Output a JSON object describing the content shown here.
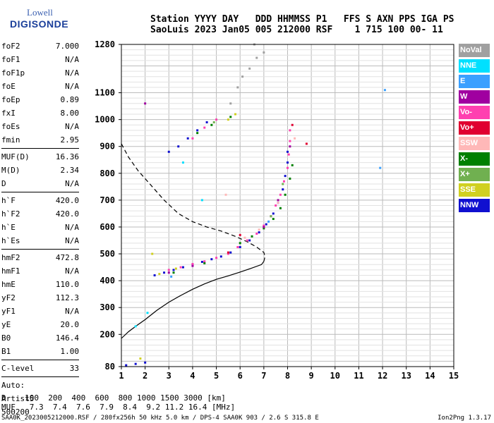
{
  "logo": {
    "line1": "Lowell",
    "line2": "DIGISONDE"
  },
  "header": {
    "line1": "Station YYYY DAY   DDD HHMMSS P1   FFS S AXN PPS IGA PS",
    "line2": "SaoLuis 2023 Jan05 005 212000 RSF    1 715 100 00- 11"
  },
  "params": [
    {
      "k": "foF2",
      "v": "7.000"
    },
    {
      "k": "foF1",
      "v": "N/A"
    },
    {
      "k": "foF1p",
      "v": "N/A"
    },
    {
      "k": "foE",
      "v": "N/A"
    },
    {
      "k": "foEp",
      "v": "0.89"
    },
    {
      "k": "fxI",
      "v": "8.00"
    },
    {
      "k": "foEs",
      "v": "N/A"
    },
    {
      "k": "fmin",
      "v": "2.95"
    },
    {
      "k": "MUF(D)",
      "v": "16.36",
      "sep": true
    },
    {
      "k": "M(D)",
      "v": "2.34"
    },
    {
      "k": "D",
      "v": "N/A"
    },
    {
      "k": "h`F",
      "v": "420.0",
      "sep": true
    },
    {
      "k": "h`F2",
      "v": "420.0"
    },
    {
      "k": "h`E",
      "v": "N/A"
    },
    {
      "k": "h`Es",
      "v": "N/A"
    },
    {
      "k": "hmF2",
      "v": "472.8",
      "sep": true
    },
    {
      "k": "hmF1",
      "v": "N/A"
    },
    {
      "k": "hmE",
      "v": "110.0"
    },
    {
      "k": "yF2",
      "v": "112.3"
    },
    {
      "k": "yF1",
      "v": "N/A"
    },
    {
      "k": "yE",
      "v": "20.0"
    },
    {
      "k": "B0",
      "v": "146.4"
    },
    {
      "k": "B1",
      "v": "1.00"
    },
    {
      "k": "C-level",
      "v": "33",
      "sep": true
    },
    {
      "k": "Auto:",
      "v": "",
      "sep": true
    },
    {
      "k": "Artist5",
      "v": ""
    },
    {
      "k": "500200",
      "v": ""
    }
  ],
  "legend": [
    {
      "label": "NoVal",
      "color": "#a0a0a0"
    },
    {
      "label": "NNE",
      "color": "#00e0ff"
    },
    {
      "label": "E",
      "color": "#3aa0ff"
    },
    {
      "label": "W",
      "color": "#a000a0"
    },
    {
      "label": "Vo-",
      "color": "#ff40b0"
    },
    {
      "label": "Vo+",
      "color": "#e00030"
    },
    {
      "label": "SSW",
      "color": "#ffb8b8"
    },
    {
      "label": "X-",
      "color": "#008000"
    },
    {
      "label": "X+",
      "color": "#70b050"
    },
    {
      "label": "SSE",
      "color": "#d0d020"
    },
    {
      "label": "NNW",
      "color": "#1010d0"
    }
  ],
  "muf": {
    "line1": "D    100  200  400  600  800 1000 1500 3000 [km]",
    "line2": "MUF   7.3  7.4  7.6  7.9  8.4  9.2 11.2 16.4 [MHz]"
  },
  "footer": {
    "left": "SAA0K_2023005212000.RSF / 280fx256h 50 kHz 5.0 km / DPS-4 SAA0K 903 / 2.6 S 315.8 E",
    "right": "Ion2Png 1.3.17"
  },
  "chart_data": {
    "type": "scatter",
    "xlim": [
      1,
      15
    ],
    "ylim": [
      80,
      1280
    ],
    "x_ticks": [
      1,
      2,
      3,
      4,
      5,
      6,
      7,
      8,
      9,
      10,
      11,
      12,
      13,
      14,
      15
    ],
    "y_ticks": [
      80,
      200,
      300,
      400,
      500,
      600,
      700,
      800,
      900,
      1000,
      1100,
      1280
    ],
    "grid": true,
    "series": [
      {
        "color": "#1010d0",
        "points": [
          [
            2.4,
            420
          ],
          [
            2.8,
            430
          ],
          [
            3.2,
            440
          ],
          [
            3.6,
            450
          ],
          [
            4.0,
            460
          ],
          [
            4.4,
            470
          ],
          [
            4.8,
            480
          ],
          [
            5.2,
            490
          ],
          [
            5.6,
            505
          ],
          [
            6.0,
            525
          ],
          [
            6.4,
            550
          ],
          [
            6.8,
            580
          ],
          [
            7.1,
            610
          ],
          [
            7.4,
            650
          ],
          [
            7.6,
            690
          ],
          [
            7.8,
            740
          ],
          [
            7.9,
            790
          ],
          [
            8.0,
            840
          ],
          [
            8.0,
            880
          ],
          [
            3.0,
            880
          ],
          [
            3.4,
            900
          ],
          [
            3.8,
            930
          ],
          [
            4.2,
            960
          ],
          [
            4.6,
            990
          ],
          [
            1.2,
            85
          ],
          [
            1.6,
            90
          ],
          [
            2.0,
            95
          ]
        ]
      },
      {
        "color": "#ff40b0",
        "points": [
          [
            3.0,
            440
          ],
          [
            3.5,
            450
          ],
          [
            4.0,
            462
          ],
          [
            4.5,
            472
          ],
          [
            5.0,
            485
          ],
          [
            5.5,
            500
          ],
          [
            5.9,
            525
          ],
          [
            6.3,
            550
          ],
          [
            6.7,
            575
          ],
          [
            7.0,
            605
          ],
          [
            7.3,
            640
          ],
          [
            7.5,
            680
          ],
          [
            7.7,
            720
          ],
          [
            7.85,
            770
          ],
          [
            8.0,
            820
          ],
          [
            8.05,
            870
          ],
          [
            8.1,
            920
          ],
          [
            8.1,
            960
          ],
          [
            4.0,
            930
          ],
          [
            4.5,
            970
          ],
          [
            5.0,
            1000
          ]
        ]
      },
      {
        "color": "#008000",
        "points": [
          [
            6.0,
            540
          ],
          [
            6.5,
            565
          ],
          [
            7.0,
            595
          ],
          [
            7.4,
            630
          ],
          [
            7.7,
            670
          ],
          [
            7.9,
            720
          ],
          [
            8.1,
            780
          ],
          [
            8.2,
            830
          ],
          [
            4.2,
            950
          ],
          [
            4.8,
            980
          ],
          [
            5.6,
            1010
          ],
          [
            3.2,
            430
          ],
          [
            4.5,
            465
          ]
        ]
      },
      {
        "color": "#d0d020",
        "points": [
          [
            2.6,
            425
          ],
          [
            3.3,
            445
          ],
          [
            5.5,
            1000
          ],
          [
            5.8,
            1020
          ],
          [
            1.8,
            110
          ],
          [
            2.3,
            500
          ]
        ]
      },
      {
        "color": "#a000a0",
        "points": [
          [
            3.0,
            430
          ],
          [
            4.0,
            455
          ],
          [
            7.0,
            600
          ],
          [
            7.6,
            700
          ],
          [
            8.1,
            900
          ],
          [
            2.0,
            1060
          ]
        ]
      },
      {
        "color": "#e00030",
        "points": [
          [
            8.2,
            980
          ],
          [
            8.8,
            910
          ],
          [
            6.0,
            570
          ],
          [
            5.5,
            505
          ]
        ]
      },
      {
        "color": "#3aa0ff",
        "points": [
          [
            12.1,
            1110
          ],
          [
            11.9,
            820
          ],
          [
            3.1,
            415
          ],
          [
            7.2,
            620
          ]
        ]
      },
      {
        "color": "#a0a0a0",
        "points": [
          [
            5.6,
            1060
          ],
          [
            5.9,
            1120
          ],
          [
            6.1,
            1160
          ],
          [
            6.4,
            1190
          ],
          [
            6.7,
            1230
          ],
          [
            7.0,
            1250
          ],
          [
            6.6,
            1280
          ]
        ]
      },
      {
        "color": "#00e0ff",
        "points": [
          [
            2.1,
            280
          ],
          [
            1.6,
            230
          ],
          [
            3.6,
            840
          ],
          [
            4.4,
            700
          ]
        ]
      },
      {
        "color": "#ffb8b8",
        "points": [
          [
            6.2,
            560
          ],
          [
            6.8,
            590
          ],
          [
            7.6,
            690
          ],
          [
            8.3,
            930
          ],
          [
            5.4,
            720
          ]
        ]
      },
      {
        "color": "#70b050",
        "points": [
          [
            7.3,
            640
          ],
          [
            7.8,
            760
          ],
          [
            4.9,
            990
          ]
        ]
      }
    ],
    "curves": [
      {
        "style": "solid",
        "points": [
          [
            1.0,
            185
          ],
          [
            1.3,
            210
          ],
          [
            1.6,
            230
          ],
          [
            2.0,
            255
          ],
          [
            2.5,
            290
          ],
          [
            3.0,
            320
          ],
          [
            3.5,
            345
          ],
          [
            4.0,
            368
          ],
          [
            4.5,
            388
          ],
          [
            5.0,
            405
          ],
          [
            5.5,
            418
          ],
          [
            6.0,
            432
          ],
          [
            6.5,
            447
          ],
          [
            6.9,
            460
          ],
          [
            7.0,
            472
          ]
        ]
      },
      {
        "style": "dashed",
        "points": [
          [
            1.0,
            910
          ],
          [
            1.3,
            860
          ],
          [
            1.7,
            810
          ],
          [
            2.2,
            760
          ],
          [
            2.8,
            700
          ],
          [
            3.4,
            650
          ],
          [
            4.0,
            620
          ],
          [
            4.6,
            600
          ],
          [
            5.2,
            585
          ],
          [
            5.8,
            565
          ],
          [
            6.3,
            545
          ],
          [
            6.7,
            525
          ],
          [
            7.0,
            505
          ],
          [
            7.05,
            490
          ],
          [
            7.0,
            472
          ]
        ]
      }
    ]
  }
}
